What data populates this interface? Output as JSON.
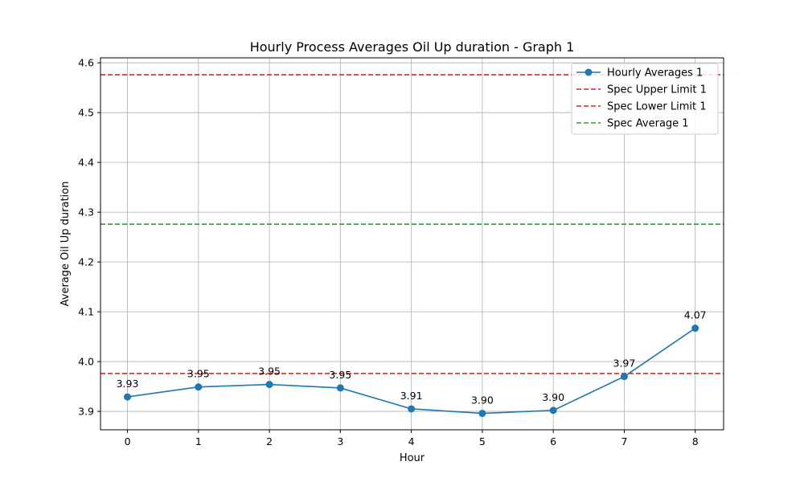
{
  "chart_data": {
    "type": "line",
    "title": "Hourly Process Averages Oil Up duration - Graph 1",
    "xlabel": "Hour",
    "ylabel": "Average Oil Up duration",
    "xlim": [
      -0.38,
      8.4
    ],
    "ylim": [
      3.863,
      4.61
    ],
    "x_ticks": [
      0,
      1,
      2,
      3,
      4,
      5,
      6,
      7,
      8
    ],
    "y_ticks": [
      3.9,
      4.0,
      4.1,
      4.2,
      4.3,
      4.4,
      4.5,
      4.6
    ],
    "y_tick_labels": [
      "3.9",
      "4.0",
      "4.1",
      "4.2",
      "4.3",
      "4.4",
      "4.5",
      "4.6"
    ],
    "grid": true,
    "legend_position": "top-right",
    "series": [
      {
        "name": "Hourly Averages 1",
        "color": "#1f77b4",
        "x": [
          0,
          1,
          2,
          3,
          4,
          5,
          6,
          7,
          8
        ],
        "y": [
          3.929,
          3.949,
          3.954,
          3.947,
          3.905,
          3.896,
          3.902,
          3.97,
          4.067
        ],
        "labels": [
          "3.93",
          "3.95",
          "3.95",
          "3.95",
          "3.91",
          "3.90",
          "3.90",
          "3.97",
          "4.07"
        ]
      }
    ],
    "reference_lines": [
      {
        "name": "Spec Upper Limit 1",
        "y": 4.576,
        "color": "#d62728"
      },
      {
        "name": "Spec Lower Limit 1",
        "y": 3.976,
        "color": "#d62728"
      },
      {
        "name": "Spec Average 1",
        "y": 4.276,
        "color": "#2ca02c"
      }
    ]
  }
}
